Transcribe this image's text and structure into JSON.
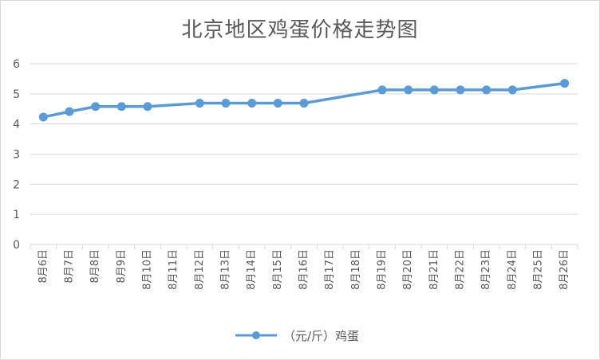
{
  "chart_data": {
    "type": "line",
    "title": "北京地区鸡蛋价格走势图",
    "xlabel": "",
    "ylabel": "",
    "ylim": [
      0,
      6
    ],
    "yticks": [
      "0",
      "1",
      "2",
      "3",
      "4",
      "5",
      "6"
    ],
    "grid": true,
    "legend_position": "bottom",
    "categories": [
      "8月6日",
      "8月7日",
      "8月8日",
      "8月9日",
      "8月10日",
      "8月11日",
      "8月12日",
      "8月13日",
      "8月14日",
      "8月15日",
      "8月16日",
      "8月17日",
      "8月18日",
      "8月19日",
      "8月20日",
      "8月21日",
      "8月22日",
      "8月23日",
      "8月24日",
      "8月25日",
      "8月26日"
    ],
    "series": [
      {
        "name": "（元/斤）鸡蛋",
        "color": "#5B9BD5",
        "values": [
          4.23,
          4.41,
          4.58,
          4.58,
          4.58,
          null,
          4.69,
          4.69,
          4.69,
          4.69,
          4.69,
          null,
          null,
          5.13,
          5.13,
          5.13,
          5.13,
          5.13,
          5.13,
          null,
          5.35
        ]
      }
    ]
  }
}
